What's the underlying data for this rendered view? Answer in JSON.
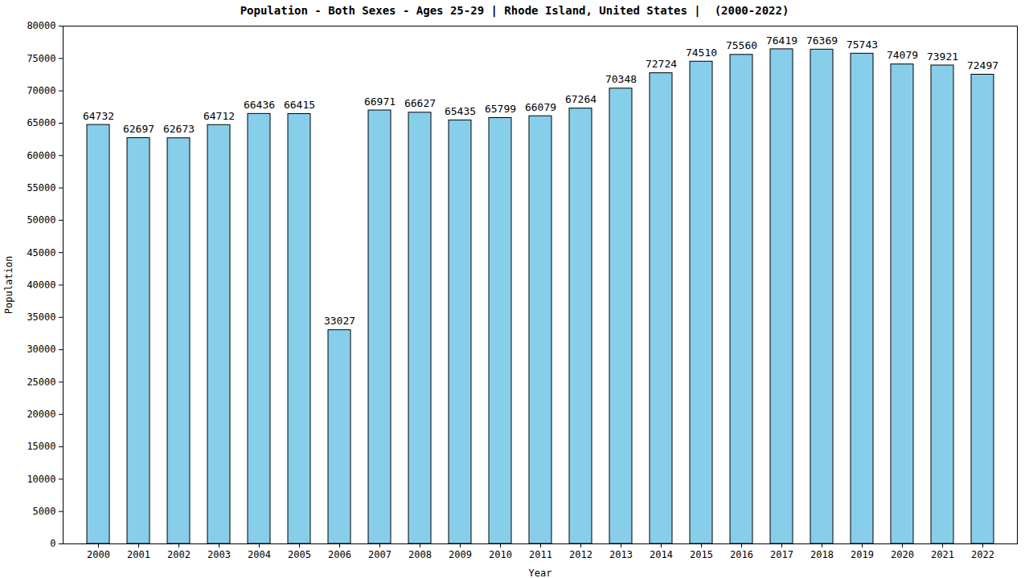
{
  "chart_data": {
    "type": "bar",
    "title": "Population - Both Sexes - Ages 25-29 | Rhode Island, United States |  (2000-2022)",
    "x_label": "Year",
    "y_label": "Population",
    "categories": [
      "2000",
      "2001",
      "2002",
      "2003",
      "2004",
      "2005",
      "2006",
      "2007",
      "2008",
      "2009",
      "2010",
      "2011",
      "2012",
      "2013",
      "2014",
      "2015",
      "2016",
      "2017",
      "2018",
      "2019",
      "2020",
      "2021",
      "2022"
    ],
    "values": [
      64732,
      62697,
      62673,
      64712,
      66436,
      66415,
      33027,
      66971,
      66627,
      65435,
      65799,
      66079,
      67264,
      70348,
      72724,
      74510,
      75560,
      76419,
      76369,
      75743,
      74079,
      73921,
      72497
    ],
    "color": "#87ceeb",
    "ylim": [
      0,
      80000
    ],
    "yticks": [
      0,
      5000,
      10000,
      15000,
      20000,
      25000,
      30000,
      35000,
      40000,
      45000,
      50000,
      55000,
      60000,
      65000,
      70000,
      75000,
      80000
    ],
    "grid": false,
    "data_labels": true
  }
}
